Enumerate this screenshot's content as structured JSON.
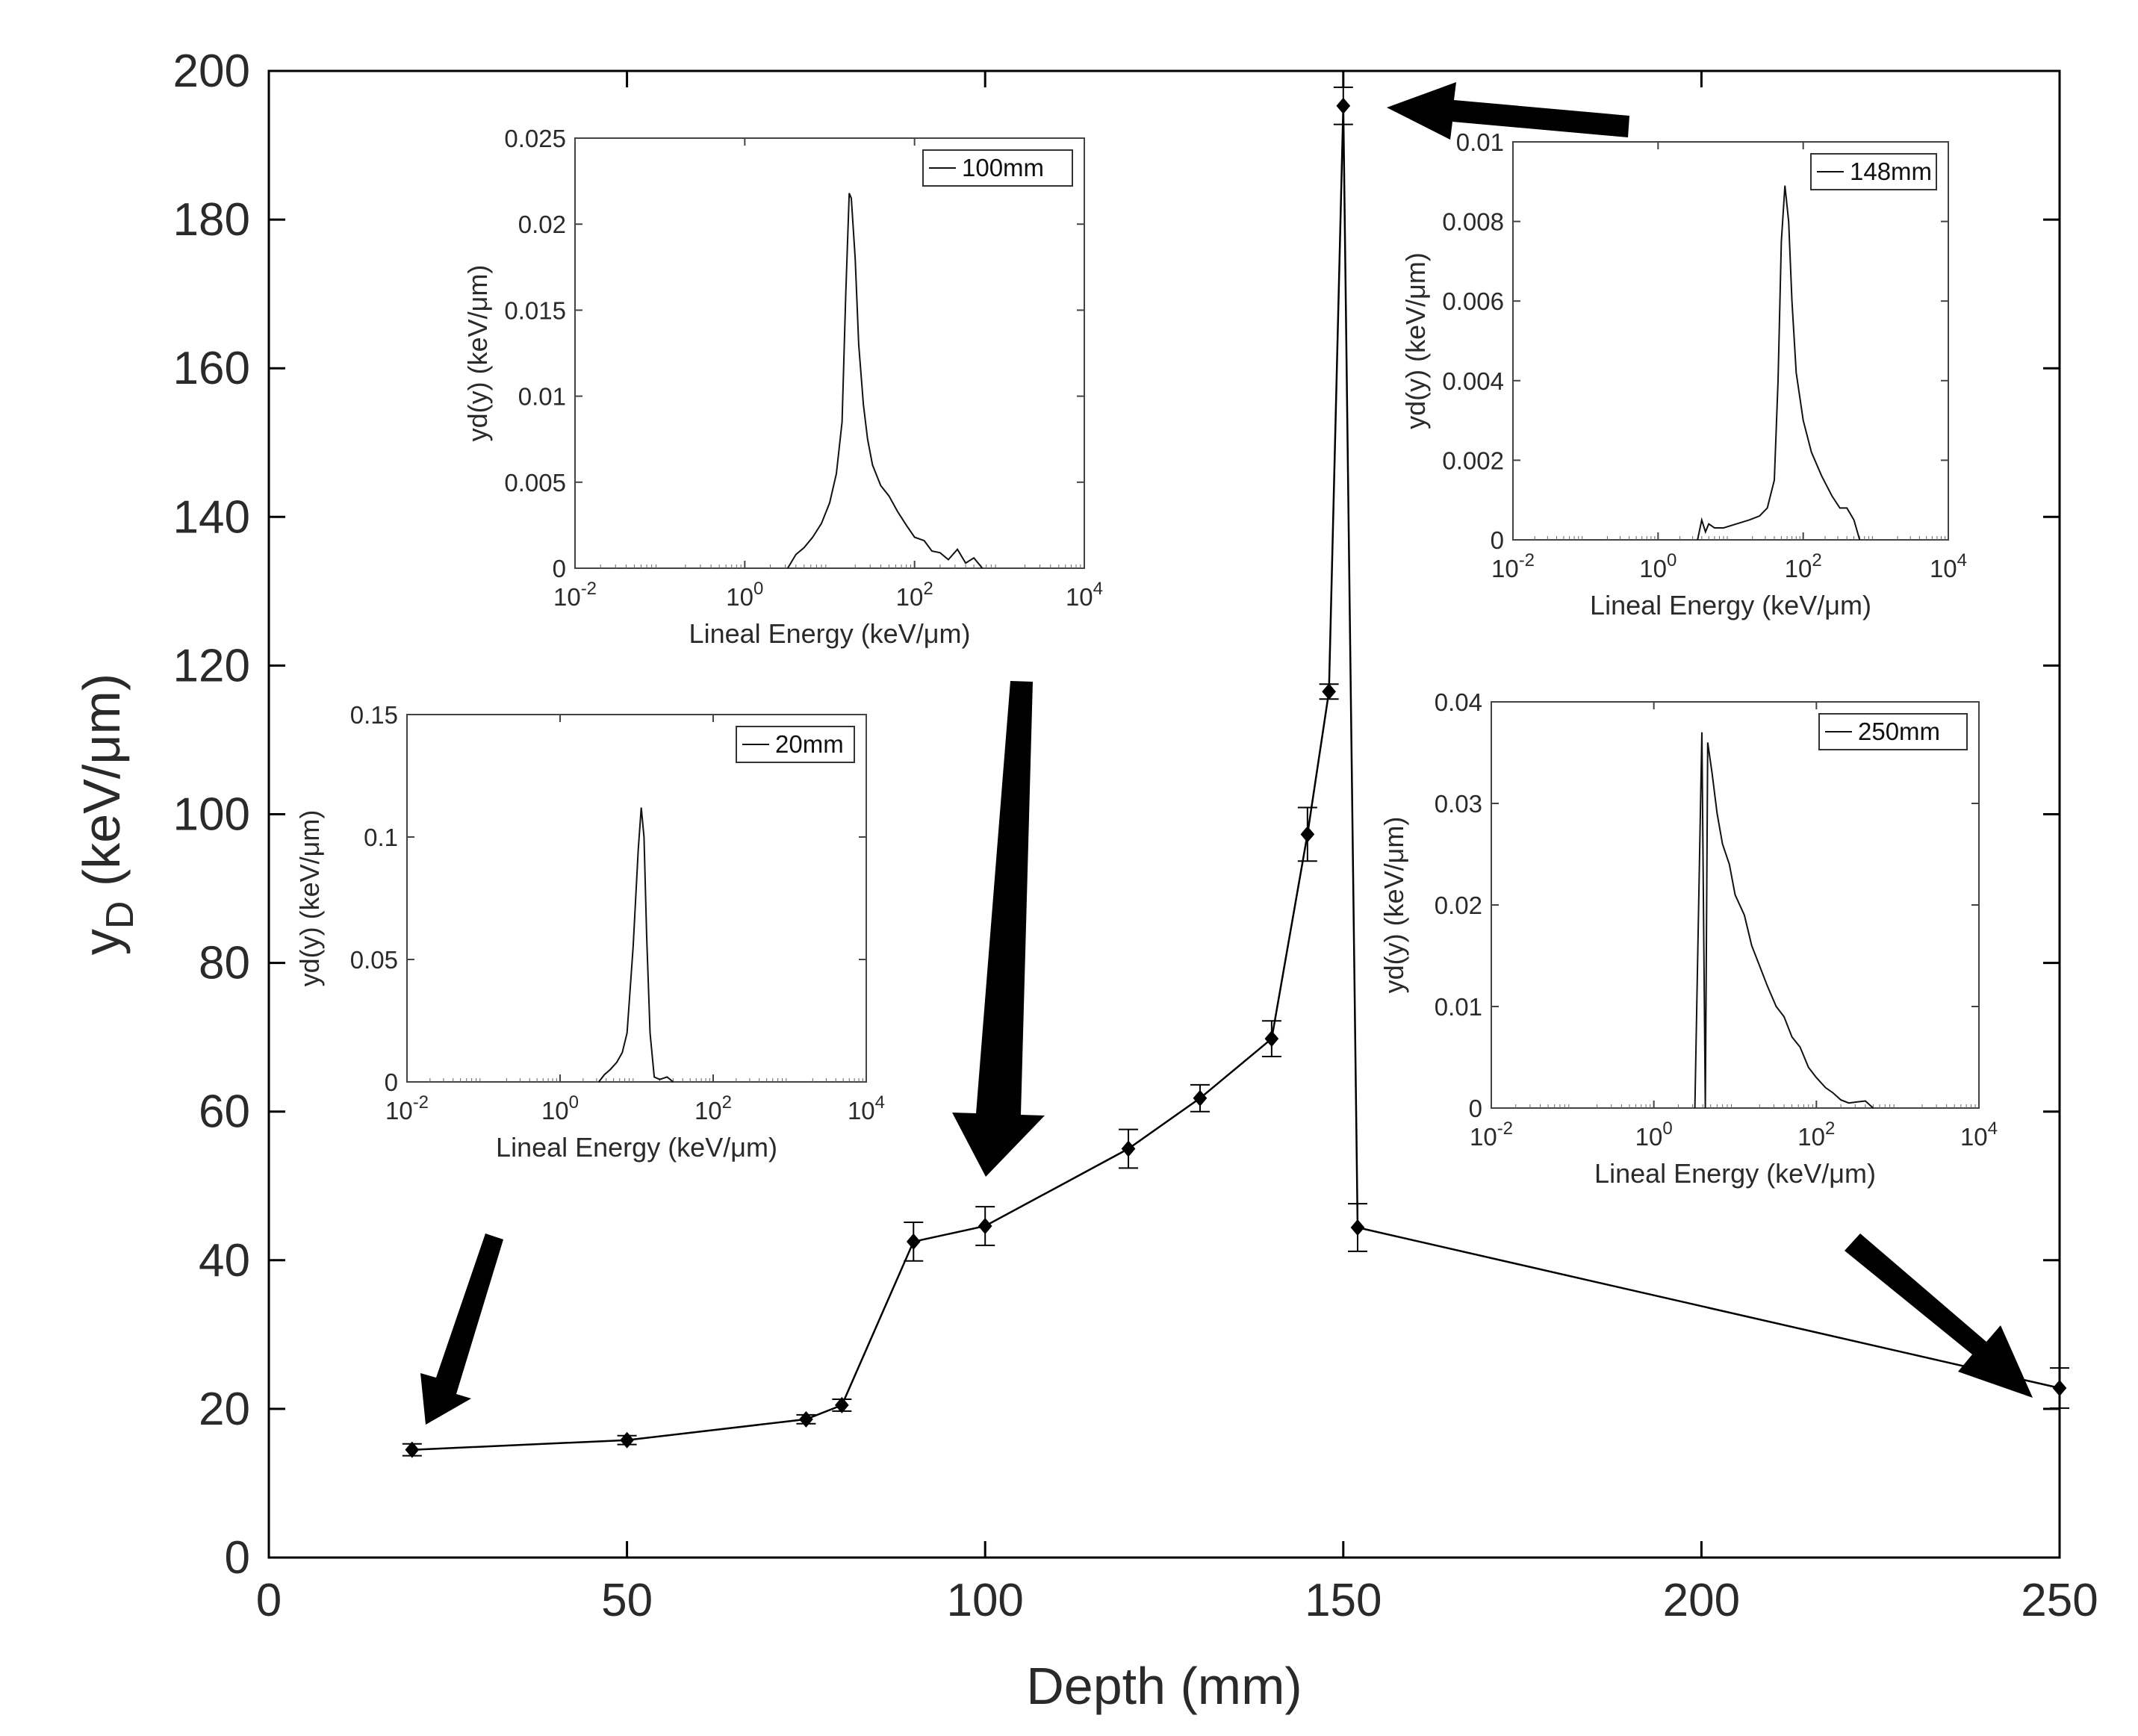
{
  "chart_data": [
    {
      "type": "line",
      "role": "main",
      "title": "",
      "xlabel": "Depth (mm)",
      "ylabel_main": "y",
      "ylabel_sub": "D",
      "ylabel_unit": " (keV/μm)",
      "xlim": [
        0,
        250
      ],
      "ylim": [
        0,
        200
      ],
      "xticks": [
        0,
        50,
        100,
        150,
        200,
        250
      ],
      "yticks": [
        0,
        20,
        40,
        60,
        80,
        100,
        120,
        140,
        160,
        180,
        200
      ],
      "grid": false,
      "series": [
        {
          "name": "yD",
          "x": [
            20,
            50,
            75,
            80,
            90,
            100,
            120,
            130,
            140,
            145,
            148,
            150,
            152,
            250
          ],
          "y": [
            14.5,
            15.8,
            18.6,
            20.5,
            42.5,
            44.6,
            55.0,
            61.8,
            69.8,
            97.3,
            116.5,
            195.3,
            44.4,
            22.8
          ],
          "err": [
            0.8,
            0.6,
            0.6,
            0.8,
            2.6,
            2.6,
            2.6,
            1.8,
            2.4,
            3.6,
            1.0,
            2.5,
            3.2,
            2.7
          ]
        }
      ],
      "annotations": [
        "arrow toward 20 mm",
        "arrow toward 100 mm",
        "arrow toward 150 mm",
        "arrow toward 250 mm"
      ]
    },
    {
      "type": "line",
      "role": "inset",
      "location": "upper-left",
      "legend": "100mm",
      "xlabel": "Lineal Energy (keV/μm)",
      "ylabel": "yd(y) (keV/μm)",
      "xscale": "log",
      "xlim": [
        0.01,
        10000
      ],
      "ylim": [
        0,
        0.025
      ],
      "yticks": [
        "0",
        "0.005",
        "0.01",
        "0.015",
        "0.02",
        "0.025"
      ],
      "xtick_exponents": [
        "-2",
        "0",
        "2",
        "4"
      ],
      "x": [
        3.2,
        4.0,
        5.0,
        6.3,
        8,
        10,
        12,
        14,
        15.5,
        17,
        18,
        20,
        22,
        25,
        28,
        32,
        40,
        50,
        63,
        80,
        100,
        130,
        160,
        200,
        250,
        320,
        400,
        500,
        630
      ],
      "y": [
        0,
        0.0008,
        0.0012,
        0.0018,
        0.0026,
        0.0038,
        0.0055,
        0.0085,
        0.016,
        0.0218,
        0.0215,
        0.018,
        0.013,
        0.0095,
        0.0075,
        0.006,
        0.0048,
        0.0042,
        0.0033,
        0.0025,
        0.0018,
        0.0016,
        0.001,
        0.0009,
        0.0005,
        0.0011,
        0.0003,
        0.0006,
        0
      ]
    },
    {
      "type": "line",
      "role": "inset",
      "location": "upper-right",
      "legend": "148mm",
      "xlabel": "Lineal Energy (keV/μm)",
      "ylabel": "yd(y) (keV/μm)",
      "xscale": "log",
      "xlim": [
        0.01,
        10000
      ],
      "ylim": [
        0,
        0.01
      ],
      "yticks": [
        "0",
        "0.002",
        "0.004",
        "0.006",
        "0.008",
        "0.01"
      ],
      "xtick_exponents": [
        "-2",
        "0",
        "2",
        "4"
      ],
      "x": [
        3.5,
        4.0,
        4.5,
        5.0,
        6,
        8,
        12,
        18,
        25,
        32,
        40,
        45,
        50,
        56,
        63,
        70,
        80,
        100,
        130,
        180,
        250,
        320,
        400,
        500,
        600
      ],
      "y": [
        0,
        0.0005,
        0.0002,
        0.0004,
        0.0003,
        0.0003,
        0.0004,
        0.0005,
        0.0006,
        0.0008,
        0.0015,
        0.004,
        0.0075,
        0.0089,
        0.008,
        0.006,
        0.0042,
        0.003,
        0.0022,
        0.0016,
        0.0011,
        0.0008,
        0.0008,
        0.0005,
        0
      ]
    },
    {
      "type": "line",
      "role": "inset",
      "location": "middle-left",
      "legend": "20mm",
      "xlabel": "Lineal Energy (keV/μm)",
      "ylabel": "yd(y) (keV/μm)",
      "xscale": "log",
      "xlim": [
        0.01,
        10000
      ],
      "ylim": [
        0,
        0.15
      ],
      "yticks": [
        "0",
        "0.05",
        "0.1",
        "0.15"
      ],
      "xtick_exponents": [
        "-2",
        "0",
        "2",
        "4"
      ],
      "x": [
        3.2,
        3.8,
        4.5,
        5.5,
        6.5,
        7.5,
        9,
        10.5,
        11.5,
        12.5,
        13.5,
        15,
        17,
        20,
        25,
        30
      ],
      "y": [
        0,
        0.003,
        0.005,
        0.008,
        0.012,
        0.02,
        0.055,
        0.095,
        0.112,
        0.1,
        0.06,
        0.02,
        0.002,
        0.001,
        0.002,
        0
      ]
    },
    {
      "type": "line",
      "role": "inset",
      "location": "middle-right",
      "legend": "250mm",
      "xlabel": "Lineal Energy (keV/μm)",
      "ylabel": "yd(y) (keV/μm)",
      "xscale": "log",
      "xlim": [
        0.01,
        10000
      ],
      "ylim": [
        0,
        0.04
      ],
      "yticks": [
        "0",
        "0.01",
        "0.02",
        "0.03",
        "0.04"
      ],
      "xtick_exponents": [
        "-2",
        "0",
        "2",
        "4"
      ],
      "x": [
        3.2,
        3.9,
        4.3,
        4.6,
        5.2,
        6,
        7,
        8.5,
        10,
        13,
        16,
        20,
        25,
        32,
        40,
        50,
        63,
        80,
        100,
        130,
        160,
        200,
        250,
        320,
        400,
        500
      ],
      "y": [
        0,
        0.037,
        0,
        0.036,
        0.033,
        0.029,
        0.026,
        0.024,
        0.021,
        0.019,
        0.016,
        0.014,
        0.012,
        0.01,
        0.009,
        0.007,
        0.006,
        0.004,
        0.003,
        0.002,
        0.0015,
        0.0008,
        0.0005,
        0.0006,
        0.0007,
        0
      ]
    }
  ]
}
